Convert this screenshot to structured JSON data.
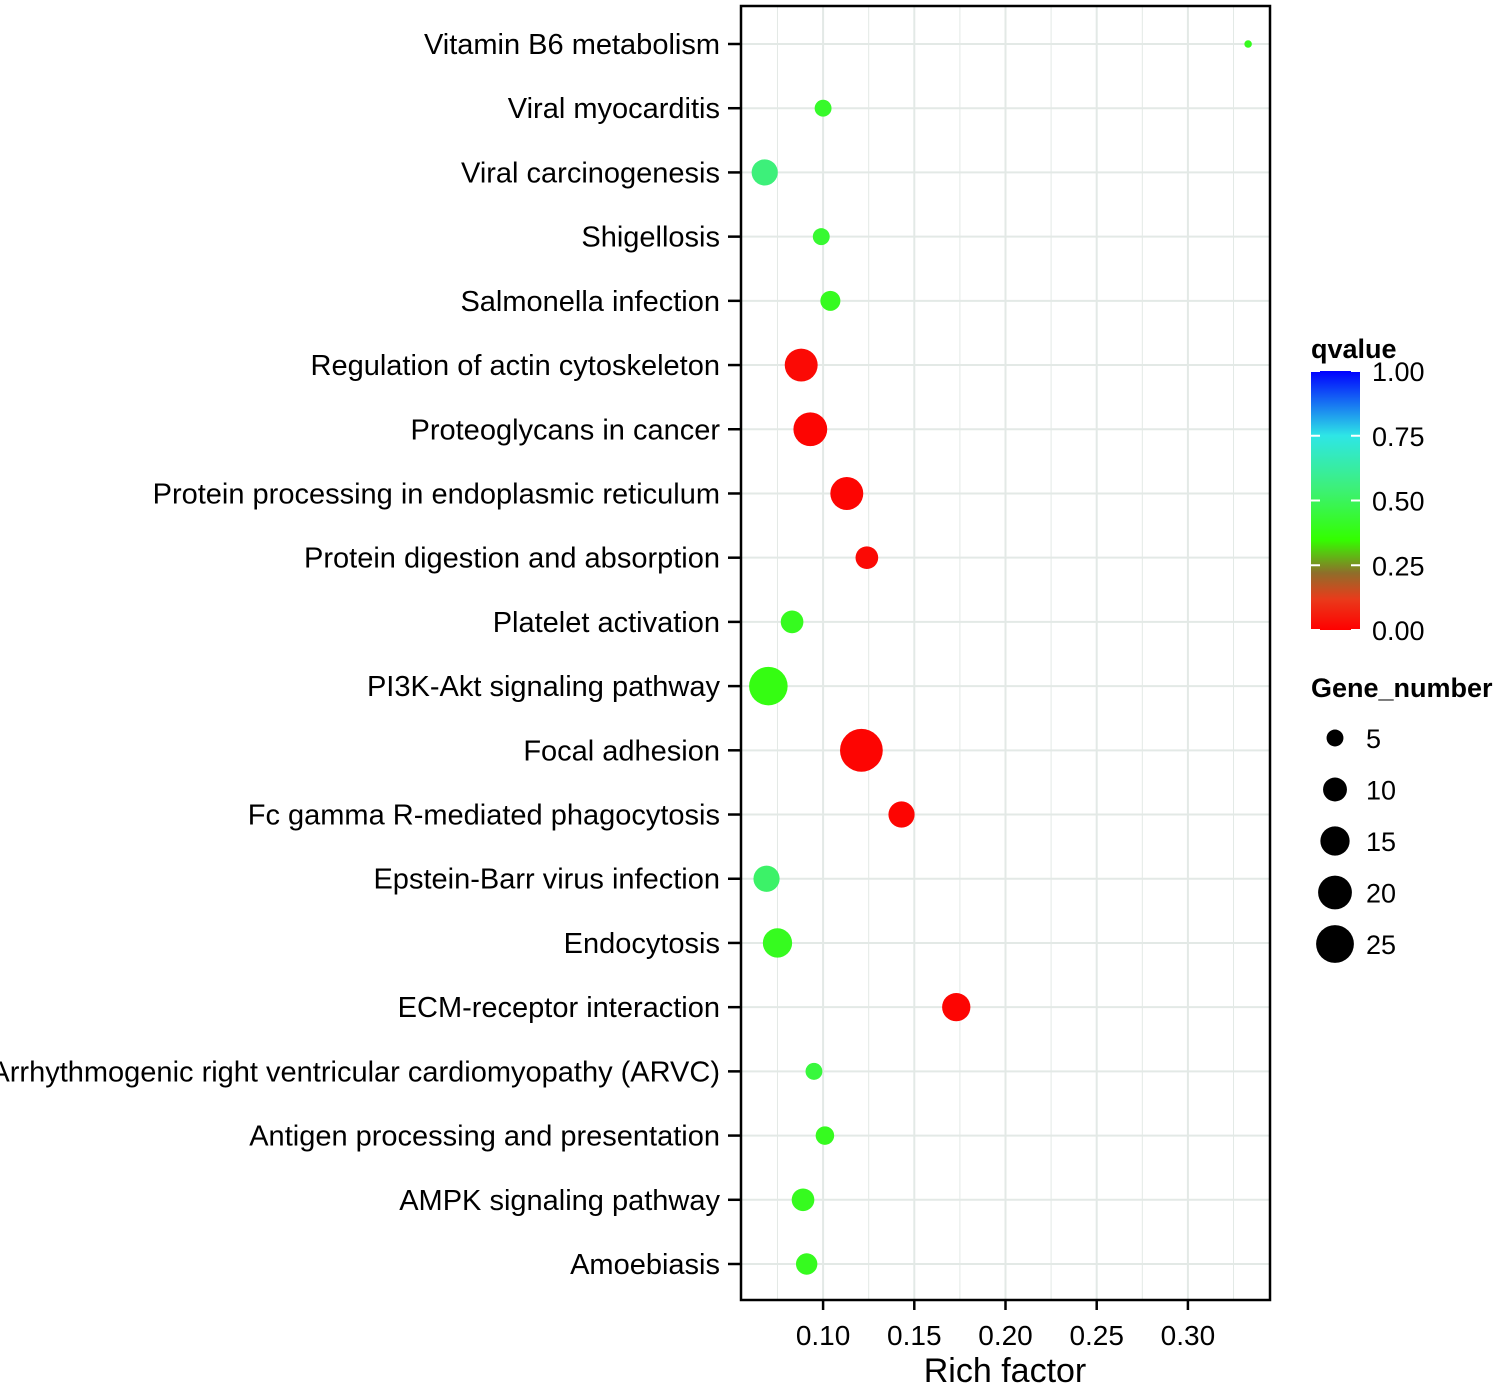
{
  "chart_data": {
    "type": "scatter",
    "subtype": "bubble",
    "title": "",
    "xlabel": "Rich factor",
    "ylabel": "",
    "xlim": [
      0.055,
      0.345
    ],
    "xticks": [
      0.1,
      0.15,
      0.2,
      0.25,
      0.3
    ],
    "xtick_labels": [
      "0.10",
      "0.15",
      "0.20",
      "0.25",
      "0.30"
    ],
    "grid": true,
    "categories": [
      "Vitamin B6 metabolism",
      "Viral myocarditis",
      "Viral carcinogenesis",
      "Shigellosis",
      "Salmonella infection",
      "Regulation of actin cytoskeleton",
      "Proteoglycans in cancer",
      "Protein processing in endoplasmic reticulum",
      "Protein digestion and absorption",
      "Platelet activation",
      "PI3K-Akt signaling pathway",
      "Focal adhesion",
      "Fc gamma R-mediated phagocytosis",
      "Epstein-Barr virus infection",
      "Endocytosis",
      "ECM-receptor interaction",
      "Arrhythmogenic right ventricular cardiomyopathy (ARVC)",
      "Antigen processing and presentation",
      "AMPK signaling pathway",
      "Amoebiasis"
    ],
    "points": [
      {
        "category": "Vitamin B6 metabolism",
        "rich_factor": 0.333,
        "gene_number": 1,
        "qvalue": 0.4
      },
      {
        "category": "Viral myocarditis",
        "rich_factor": 0.1,
        "gene_number": 5,
        "qvalue": 0.42
      },
      {
        "category": "Viral carcinogenesis",
        "rich_factor": 0.068,
        "gene_number": 12,
        "qvalue": 0.55
      },
      {
        "category": "Shigellosis",
        "rich_factor": 0.099,
        "gene_number": 5,
        "qvalue": 0.43
      },
      {
        "category": "Salmonella infection",
        "rich_factor": 0.104,
        "gene_number": 7,
        "qvalue": 0.4
      },
      {
        "category": "Regulation of actin cytoskeleton",
        "rich_factor": 0.088,
        "gene_number": 19,
        "qvalue": 0.02
      },
      {
        "category": "Proteoglycans in cancer",
        "rich_factor": 0.093,
        "gene_number": 20,
        "qvalue": 0.01
      },
      {
        "category": "Protein processing in endoplasmic reticulum",
        "rich_factor": 0.113,
        "gene_number": 19,
        "qvalue": 0.01
      },
      {
        "category": "Protein digestion and absorption",
        "rich_factor": 0.124,
        "gene_number": 9,
        "qvalue": 0.02
      },
      {
        "category": "Platelet activation",
        "rich_factor": 0.083,
        "gene_number": 9,
        "qvalue": 0.4
      },
      {
        "category": "PI3K-Akt signaling pathway",
        "rich_factor": 0.07,
        "gene_number": 26,
        "qvalue": 0.38
      },
      {
        "category": "Focal adhesion",
        "rich_factor": 0.121,
        "gene_number": 32,
        "qvalue": 0.01
      },
      {
        "category": "Fc gamma R-mediated phagocytosis",
        "rich_factor": 0.143,
        "gene_number": 12,
        "qvalue": 0.01
      },
      {
        "category": "Epstein-Barr virus infection",
        "rich_factor": 0.069,
        "gene_number": 12,
        "qvalue": 0.52
      },
      {
        "category": "Endocytosis",
        "rich_factor": 0.075,
        "gene_number": 15,
        "qvalue": 0.4
      },
      {
        "category": "ECM-receptor interaction",
        "rich_factor": 0.173,
        "gene_number": 14,
        "qvalue": 0.01
      },
      {
        "category": "Arrhythmogenic right ventricular cardiomyopathy (ARVC)",
        "rich_factor": 0.095,
        "gene_number": 5,
        "qvalue": 0.45
      },
      {
        "category": "Antigen processing and presentation",
        "rich_factor": 0.101,
        "gene_number": 6,
        "qvalue": 0.4
      },
      {
        "category": "AMPK signaling pathway",
        "rich_factor": 0.089,
        "gene_number": 9,
        "qvalue": 0.4
      },
      {
        "category": "Amoebiasis",
        "rich_factor": 0.091,
        "gene_number": 8,
        "qvalue": 0.4
      }
    ],
    "color_legend": {
      "title": "qvalue",
      "ticks": [
        1.0,
        0.75,
        0.5,
        0.25,
        0.0
      ],
      "tick_labels": [
        "1.00",
        "0.75",
        "0.50",
        "0.25",
        "0.00"
      ],
      "colorscale": [
        {
          "value": 0.0,
          "color": "#ff0000"
        },
        {
          "value": 0.12,
          "color": "#e93b1b"
        },
        {
          "value": 0.22,
          "color": "#8f6e2a"
        },
        {
          "value": 0.35,
          "color": "#33ff00"
        },
        {
          "value": 0.55,
          "color": "#3df07a"
        },
        {
          "value": 0.75,
          "color": "#2ee6e6"
        },
        {
          "value": 1.0,
          "color": "#0000ff"
        }
      ]
    },
    "size_legend": {
      "title": "Gene_number",
      "values": [
        5,
        10,
        15,
        20,
        25
      ],
      "labels": [
        "5",
        "10",
        "15",
        "20",
        "25"
      ]
    }
  },
  "colors": {
    "panel_border": "#000000",
    "grid": "#e3e9e6",
    "legend_marker": "#000000"
  }
}
